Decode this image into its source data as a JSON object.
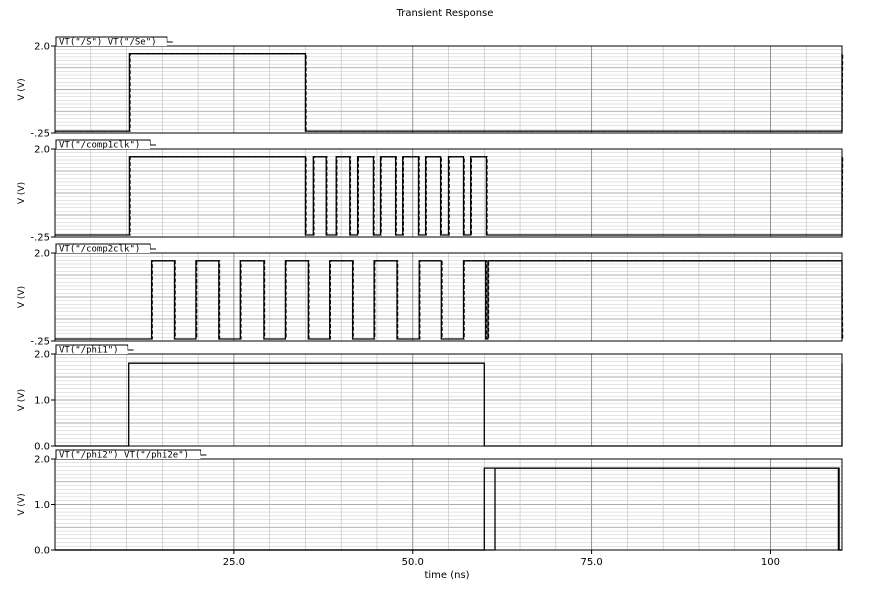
{
  "title": "Transient Response",
  "chart_data": {
    "type": "line",
    "title": "Transient Response",
    "xlabel": "time (ns)",
    "xlim": [
      0,
      110
    ],
    "x_ticks": [
      {
        "value": 25,
        "label": "25.0"
      },
      {
        "value": 50,
        "label": "50.0"
      },
      {
        "value": 75,
        "label": "75.0"
      },
      {
        "value": 100,
        "label": "100"
      }
    ],
    "grid": true,
    "panels": [
      {
        "legend": "VT(\"/S\") VT(\"/Se\")",
        "ylabel": "V (V)",
        "ylim": [
          -0.25,
          2.0
        ],
        "y_ticks": [
          {
            "value": 2.0,
            "label": "2.0"
          },
          {
            "value": -0.25,
            "label": "-.25"
          }
        ],
        "series": [
          {
            "style": "solid",
            "x": [
              0,
              10.4,
              10.4,
              35,
              35,
              110,
              110
            ],
            "y": [
              -0.2,
              -0.2,
              1.8,
              1.8,
              -0.2,
              -0.2,
              1.8
            ]
          },
          {
            "style": "dashed",
            "x": [
              0,
              10.5,
              10.5,
              35.1,
              35.1,
              110,
              110.1
            ],
            "y": [
              -0.2,
              -0.2,
              1.8,
              1.8,
              -0.2,
              -0.2,
              1.8
            ]
          }
        ]
      },
      {
        "legend": "VT(\"/comp1clk\")",
        "ylabel": "V (V)",
        "ylim": [
          -0.25,
          2.0
        ],
        "y_ticks": [
          {
            "value": 2.0,
            "label": "2.0"
          },
          {
            "value": -0.25,
            "label": "-.25"
          }
        ],
        "series": [
          {
            "style": "solid",
            "x": [
              0,
              10.4,
              10.4,
              35,
              35,
              36.1,
              36.1,
              37.9,
              37.9,
              39.3,
              39.3,
              41.2,
              41.2,
              42.3,
              42.3,
              44.5,
              44.5,
              45.5,
              45.5,
              47.6,
              47.6,
              48.6,
              48.6,
              50.8,
              50.8,
              51.8,
              51.8,
              53.9,
              53.9,
              55.0,
              55.0,
              57.1,
              57.1,
              58.1,
              58.1,
              60.3,
              60.3,
              110,
              110
            ],
            "y": [
              -0.2,
              -0.2,
              1.8,
              1.8,
              -0.2,
              -0.2,
              1.8,
              1.8,
              -0.2,
              -0.2,
              1.8,
              1.8,
              -0.2,
              -0.2,
              1.8,
              1.8,
              -0.2,
              -0.2,
              1.8,
              1.8,
              -0.2,
              -0.2,
              1.8,
              1.8,
              -0.2,
              -0.2,
              1.8,
              1.8,
              -0.2,
              -0.2,
              1.8,
              1.8,
              -0.2,
              -0.2,
              1.8,
              1.8,
              -0.2,
              -0.2,
              1.8
            ]
          },
          {
            "style": "dashed",
            "x": [
              0,
              10.5,
              10.5,
              35.1,
              35.1,
              36.2,
              36.2,
              38.0,
              38.0,
              39.4,
              39.4,
              41.3,
              41.3,
              42.4,
              42.4,
              44.6,
              44.6,
              45.6,
              45.6,
              47.7,
              47.7,
              48.7,
              48.7,
              50.9,
              50.9,
              51.9,
              51.9,
              54.0,
              54.0,
              55.1,
              55.1,
              57.2,
              57.2,
              58.2,
              58.2,
              60.4,
              60.4,
              110,
              110.1
            ],
            "y": [
              -0.2,
              -0.2,
              1.8,
              1.8,
              -0.2,
              -0.2,
              1.8,
              1.8,
              -0.2,
              -0.2,
              1.8,
              1.8,
              -0.2,
              -0.2,
              1.8,
              1.8,
              -0.2,
              -0.2,
              1.8,
              1.8,
              -0.2,
              -0.2,
              1.8,
              1.8,
              -0.2,
              -0.2,
              1.8,
              1.8,
              -0.2,
              -0.2,
              1.8,
              1.8,
              -0.2,
              -0.2,
              1.8,
              1.8,
              -0.2,
              -0.2,
              1.8
            ]
          }
        ]
      },
      {
        "legend": "VT(\"/comp2clk\")",
        "ylabel": "V (V)",
        "ylim": [
          -0.25,
          2.0
        ],
        "y_ticks": [
          {
            "value": 2.0,
            "label": "2.0"
          },
          {
            "value": -0.25,
            "label": "-.25"
          }
        ],
        "series": [
          {
            "style": "solid",
            "x": [
              0,
              13.5,
              13.5,
              16.7,
              16.7,
              19.7,
              19.7,
              22.9,
              22.9,
              25.9,
              25.9,
              29.2,
              29.2,
              32.2,
              32.2,
              35.4,
              35.4,
              38.4,
              38.4,
              41.6,
              41.6,
              44.6,
              44.6,
              47.8,
              47.8,
              50.9,
              50.9,
              54.0,
              54.0,
              57.1,
              57.1,
              60.2,
              60.2,
              60.5,
              60.5,
              110,
              110
            ],
            "y": [
              -0.2,
              -0.2,
              1.8,
              1.8,
              -0.2,
              -0.2,
              1.8,
              1.8,
              -0.2,
              -0.2,
              1.8,
              1.8,
              -0.2,
              -0.2,
              1.8,
              1.8,
              -0.2,
              -0.2,
              1.8,
              1.8,
              -0.2,
              -0.2,
              1.8,
              1.8,
              -0.2,
              -0.2,
              1.8,
              1.8,
              -0.2,
              -0.2,
              1.8,
              1.8,
              -0.2,
              -0.2,
              1.8,
              1.8,
              -0.2
            ]
          },
          {
            "style": "dashed",
            "x": [
              0,
              13.6,
              13.6,
              16.8,
              16.8,
              19.8,
              19.8,
              23.0,
              23.0,
              26.0,
              26.0,
              29.3,
              29.3,
              32.3,
              32.3,
              35.5,
              35.5,
              38.5,
              38.5,
              41.7,
              41.7,
              44.7,
              44.7,
              47.9,
              47.9,
              51.0,
              51.0,
              54.1,
              54.1,
              57.2,
              57.2,
              60.3,
              60.3,
              60.6,
              60.6,
              110,
              110.1
            ],
            "y": [
              -0.2,
              -0.2,
              1.8,
              1.8,
              -0.2,
              -0.2,
              1.8,
              1.8,
              -0.2,
              -0.2,
              1.8,
              1.8,
              -0.2,
              -0.2,
              1.8,
              1.8,
              -0.2,
              -0.2,
              1.8,
              1.8,
              -0.2,
              -0.2,
              1.8,
              1.8,
              -0.2,
              -0.2,
              1.8,
              1.8,
              -0.2,
              -0.2,
              1.8,
              1.8,
              -0.2,
              -0.2,
              1.8,
              1.8,
              -0.2
            ]
          }
        ]
      },
      {
        "legend": "VT(\"/phi1\")",
        "ylabel": "V (V)",
        "ylim": [
          0.0,
          2.0
        ],
        "y_ticks": [
          {
            "value": 2.0,
            "label": "2.0"
          },
          {
            "value": 1.0,
            "label": "1.0"
          },
          {
            "value": 0.0,
            "label": "0.0"
          }
        ],
        "series": [
          {
            "style": "solid",
            "x": [
              0,
              10.3,
              10.3,
              60.0,
              60.0,
              110,
              110
            ],
            "y": [
              0.0,
              0.0,
              1.8,
              1.8,
              0.0,
              0.0,
              1.8
            ]
          }
        ]
      },
      {
        "legend": "VT(\"/phi2\") VT(\"/phi2e\")",
        "ylabel": "V (V)",
        "ylim": [
          0.0,
          2.0
        ],
        "y_ticks": [
          {
            "value": 2.0,
            "label": "2.0"
          },
          {
            "value": 1.0,
            "label": "1.0"
          },
          {
            "value": 0.0,
            "label": "0.0"
          }
        ],
        "series": [
          {
            "style": "solid",
            "x": [
              0,
              60.0,
              60.0,
              109.5,
              109.5,
              110
            ],
            "y": [
              0.0,
              0.0,
              1.8,
              1.8,
              0.0,
              0.0
            ]
          },
          {
            "style": "solid",
            "x": [
              0,
              61.5,
              61.5,
              109.6,
              109.6,
              110
            ],
            "y": [
              0.0,
              0.0,
              1.8,
              1.8,
              0.0,
              0.0
            ]
          }
        ]
      }
    ]
  }
}
